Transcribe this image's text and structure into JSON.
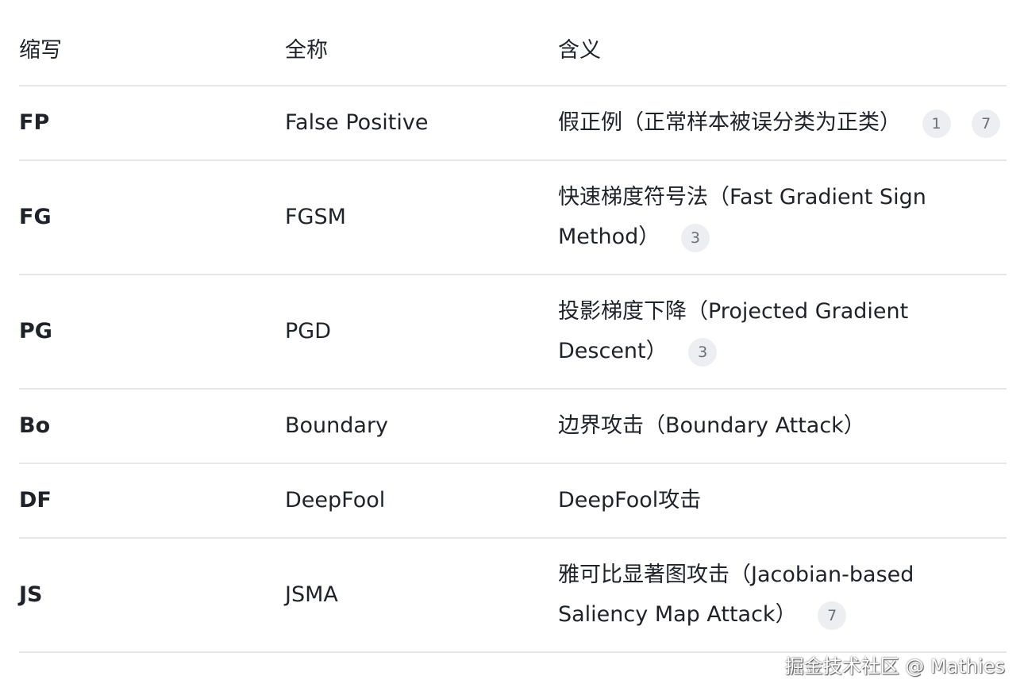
{
  "table": {
    "headers": [
      "缩写",
      "全称",
      "含义"
    ],
    "rows": [
      {
        "abbr": "FP",
        "full": "False Positive",
        "meaning": "假正例（正常样本被误分类为正类）",
        "refs": [
          "1",
          "7"
        ]
      },
      {
        "abbr": "FG",
        "full": "FGSM",
        "meaning": "快速梯度符号法（Fast Gradient Sign Method）",
        "refs": [
          "3"
        ]
      },
      {
        "abbr": "PG",
        "full": "PGD",
        "meaning": "投影梯度下降（Projected Gradient Descent）",
        "refs": [
          "3"
        ]
      },
      {
        "abbr": "Bo",
        "full": "Boundary",
        "meaning": "边界攻击（Boundary Attack）",
        "refs": []
      },
      {
        "abbr": "DF",
        "full": "DeepFool",
        "meaning": "DeepFool攻击",
        "refs": []
      },
      {
        "abbr": "JS",
        "full": "JSMA",
        "meaning": "雅可比显著图攻击（Jacobian-based Saliency Map Attack）",
        "refs": [
          "7"
        ]
      }
    ]
  },
  "watermark": "掘金技术社区 @ Mathies"
}
